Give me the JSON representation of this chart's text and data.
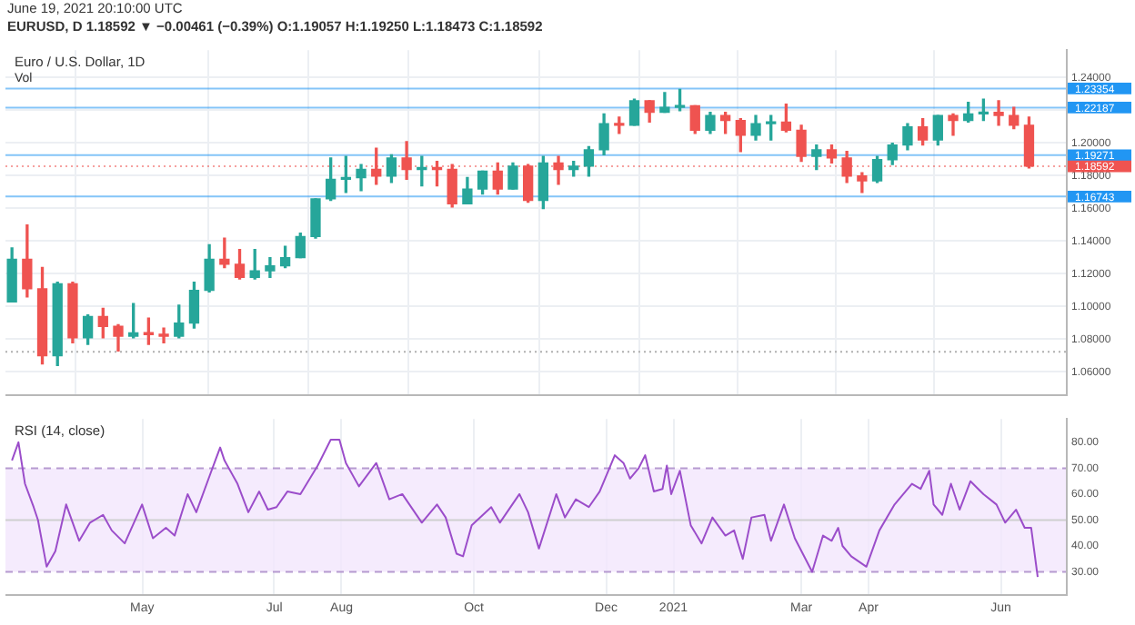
{
  "chart_data": [
    {
      "type": "candlestick",
      "title": "Euro / U.S. Dollar, 1D",
      "subtitle": "Vol",
      "annotations": [
        "June 19, 2021 20:10:00 UTC",
        "EURUSD, D 1.18592 ▼ −0.00461 (−0.39%) O:1.19057 H:1.19250 L:1.18473 C:1.18592"
      ],
      "x": [
        "2020-03-02",
        "2020-03-09",
        "2020-03-16",
        "2020-03-23",
        "2020-03-30",
        "2020-04-06",
        "2020-04-13",
        "2020-04-20",
        "2020-04-27",
        "2020-05-04",
        "2020-05-11",
        "2020-05-18",
        "2020-05-25",
        "2020-06-01",
        "2020-06-08",
        "2020-06-15",
        "2020-06-22",
        "2020-06-29",
        "2020-07-06",
        "2020-07-13",
        "2020-07-20",
        "2020-07-27",
        "2020-08-03",
        "2020-08-10",
        "2020-08-17",
        "2020-08-24",
        "2020-08-31",
        "2020-09-07",
        "2020-09-14",
        "2020-09-21",
        "2020-09-28",
        "2020-10-05",
        "2020-10-12",
        "2020-10-19",
        "2020-10-26",
        "2020-11-02",
        "2020-11-09",
        "2020-11-16",
        "2020-11-23",
        "2020-11-30",
        "2020-12-07",
        "2020-12-14",
        "2020-12-21",
        "2020-12-28",
        "2021-01-04",
        "2021-01-11",
        "2021-01-18",
        "2021-01-25",
        "2021-02-01",
        "2021-02-08",
        "2021-02-15",
        "2021-02-22",
        "2021-03-01",
        "2021-03-08",
        "2021-03-15",
        "2021-03-22",
        "2021-03-29",
        "2021-04-05",
        "2021-04-12",
        "2021-04-19",
        "2021-04-26",
        "2021-05-03",
        "2021-05-10",
        "2021-05-17",
        "2021-05-24",
        "2021-05-31",
        "2021-06-07",
        "2021-06-14"
      ],
      "ohlc": [
        [
          1.103,
          1.136,
          1.103,
          1.129
        ],
        [
          1.129,
          1.15,
          1.106,
          1.111
        ],
        [
          1.111,
          1.124,
          1.065,
          1.07
        ],
        [
          1.07,
          1.115,
          1.064,
          1.114
        ],
        [
          1.114,
          1.115,
          1.078,
          1.081
        ],
        [
          1.081,
          1.095,
          1.077,
          1.094
        ],
        [
          1.094,
          1.099,
          1.081,
          1.088
        ],
        [
          1.088,
          1.089,
          1.073,
          1.082
        ],
        [
          1.082,
          1.102,
          1.081,
          1.084
        ],
        [
          1.084,
          1.093,
          1.077,
          1.083
        ],
        [
          1.083,
          1.087,
          1.078,
          1.082
        ],
        [
          1.082,
          1.101,
          1.081,
          1.09
        ],
        [
          1.09,
          1.115,
          1.087,
          1.11
        ],
        [
          1.11,
          1.138,
          1.109,
          1.129
        ],
        [
          1.129,
          1.142,
          1.124,
          1.126
        ],
        [
          1.126,
          1.135,
          1.117,
          1.118
        ],
        [
          1.118,
          1.135,
          1.117,
          1.122
        ],
        [
          1.122,
          1.13,
          1.118,
          1.125
        ],
        [
          1.125,
          1.137,
          1.124,
          1.13
        ],
        [
          1.13,
          1.145,
          1.13,
          1.143
        ],
        [
          1.143,
          1.166,
          1.142,
          1.166
        ],
        [
          1.166,
          1.191,
          1.165,
          1.178
        ],
        [
          1.178,
          1.192,
          1.17,
          1.179
        ],
        [
          1.179,
          1.187,
          1.171,
          1.184
        ],
        [
          1.184,
          1.197,
          1.175,
          1.18
        ],
        [
          1.18,
          1.193,
          1.176,
          1.191
        ],
        [
          1.191,
          1.201,
          1.178,
          1.184
        ],
        [
          1.184,
          1.192,
          1.174,
          1.185
        ],
        [
          1.185,
          1.189,
          1.174,
          1.184
        ],
        [
          1.184,
          1.187,
          1.161,
          1.163
        ],
        [
          1.163,
          1.179,
          1.163,
          1.172
        ],
        [
          1.172,
          1.183,
          1.169,
          1.183
        ],
        [
          1.183,
          1.188,
          1.169,
          1.172
        ],
        [
          1.172,
          1.188,
          1.172,
          1.186
        ],
        [
          1.186,
          1.187,
          1.164,
          1.165
        ],
        [
          1.165,
          1.192,
          1.16,
          1.188
        ],
        [
          1.188,
          1.192,
          1.175,
          1.184
        ],
        [
          1.184,
          1.189,
          1.18,
          1.186
        ],
        [
          1.186,
          1.198,
          1.18,
          1.196
        ],
        [
          1.196,
          1.218,
          1.193,
          1.212
        ],
        [
          1.212,
          1.216,
          1.206,
          1.211
        ],
        [
          1.211,
          1.227,
          1.211,
          1.226
        ],
        [
          1.226,
          1.226,
          1.213,
          1.219
        ],
        [
          1.219,
          1.231,
          1.219,
          1.222
        ],
        [
          1.222,
          1.233,
          1.22,
          1.223
        ],
        [
          1.223,
          1.223,
          1.206,
          1.208
        ],
        [
          1.208,
          1.219,
          1.206,
          1.217
        ],
        [
          1.217,
          1.219,
          1.206,
          1.214
        ],
        [
          1.214,
          1.215,
          1.195,
          1.205
        ],
        [
          1.205,
          1.217,
          1.202,
          1.212
        ],
        [
          1.212,
          1.217,
          1.202,
          1.213
        ],
        [
          1.213,
          1.224,
          1.207,
          1.208
        ],
        [
          1.208,
          1.211,
          1.189,
          1.192
        ],
        [
          1.192,
          1.199,
          1.184,
          1.196
        ],
        [
          1.196,
          1.199,
          1.188,
          1.191
        ],
        [
          1.191,
          1.195,
          1.176,
          1.18
        ],
        [
          1.18,
          1.182,
          1.17,
          1.177
        ],
        [
          1.177,
          1.192,
          1.176,
          1.19
        ],
        [
          1.19,
          1.2,
          1.187,
          1.199
        ],
        [
          1.199,
          1.212,
          1.196,
          1.21
        ],
        [
          1.21,
          1.215,
          1.199,
          1.202
        ],
        [
          1.202,
          1.217,
          1.199,
          1.217
        ],
        [
          1.217,
          1.218,
          1.205,
          1.214
        ],
        [
          1.214,
          1.225,
          1.213,
          1.218
        ],
        [
          1.218,
          1.227,
          1.214,
          1.219
        ],
        [
          1.219,
          1.226,
          1.211,
          1.217
        ],
        [
          1.217,
          1.222,
          1.209,
          1.211
        ],
        [
          1.211,
          1.216,
          1.185,
          1.186
        ]
      ],
      "colors": [
        "#26a69a",
        "#ef5350",
        "#ef5350",
        "#26a69a",
        "#ef5350",
        "#26a69a",
        "#ef5350",
        "#ef5350",
        "#26a69a",
        "#ef5350",
        "#ef5350",
        "#26a69a",
        "#26a69a",
        "#26a69a",
        "#ef5350",
        "#ef5350",
        "#26a69a",
        "#26a69a",
        "#26a69a",
        "#26a69a",
        "#26a69a",
        "#26a69a",
        "#26a69a",
        "#26a69a",
        "#ef5350",
        "#26a69a",
        "#ef5350",
        "#26a69a",
        "#ef5350",
        "#ef5350",
        "#26a69a",
        "#26a69a",
        "#ef5350",
        "#26a69a",
        "#ef5350",
        "#26a69a",
        "#ef5350",
        "#26a69a",
        "#26a69a",
        "#26a69a",
        "#ef5350",
        "#26a69a",
        "#ef5350",
        "#26a69a",
        "#26a69a",
        "#ef5350",
        "#26a69a",
        "#ef5350",
        "#ef5350",
        "#26a69a",
        "#26a69a",
        "#ef5350",
        "#ef5350",
        "#26a69a",
        "#ef5350",
        "#ef5350",
        "#ef5350",
        "#26a69a",
        "#26a69a",
        "#26a69a",
        "#ef5350",
        "#26a69a",
        "#ef5350",
        "#26a69a",
        "#26a69a",
        "#ef5350",
        "#ef5350",
        "#ef5350"
      ],
      "xlim": [
        "2020-02-28",
        "2021-07-01"
      ],
      "xticks": [
        "2020-05-01",
        "2020-07-01",
        "2020-08-01",
        "2020-10-01",
        "2020-12-01",
        "2021-01-01",
        "2021-03-01",
        "2021-04-01",
        "2021-06-01"
      ],
      "ylim": [
        1.046,
        1.257
      ],
      "yticks": [
        {
          "value": 1.06,
          "label": "1.06000"
        },
        {
          "value": 1.08,
          "label": "1.08000"
        },
        {
          "value": 1.1,
          "label": "1.10000"
        },
        {
          "value": 1.12,
          "label": "1.12000"
        },
        {
          "value": 1.14,
          "label": "1.14000"
        },
        {
          "value": 1.16,
          "label": "1.16000"
        },
        {
          "value": 1.18,
          "label": "1.18000"
        },
        {
          "value": 1.2,
          "label": "1.20000"
        },
        {
          "value": 1.22,
          "label": null
        },
        {
          "value": 1.24,
          "label": "1.24000"
        }
      ],
      "tick_labels": "y",
      "grid": true,
      "ref_lines": [
        {
          "axis": "y",
          "value": 1.23354,
          "label": "1.23354",
          "color": "#2196f3",
          "line_style": "solid"
        },
        {
          "axis": "y",
          "value": 1.22187,
          "label": "1.22187",
          "color": "#2196f3",
          "line_style": "solid"
        },
        {
          "axis": "y",
          "value": 1.19271,
          "label": "1.19271",
          "color": "#2196f3",
          "line_style": "solid"
        },
        {
          "axis": "y",
          "value": 1.18592,
          "label": "1.18592",
          "color": "#ef5350",
          "line_style": "dotted"
        },
        {
          "axis": "y",
          "value": 1.16743,
          "label": "1.16743",
          "color": "#2196f3",
          "line_style": "solid"
        },
        {
          "axis": "y",
          "value": 1.0725,
          "color": "#b0b0b0",
          "line_style": "dotted"
        }
      ]
    },
    {
      "type": "line",
      "title": "RSI (14, close)",
      "color": "#9b4dca",
      "marker": "none",
      "line_style": "solid",
      "x": [
        "2020-03-02",
        "2020-03-05",
        "2020-03-08",
        "2020-03-12",
        "2020-03-14",
        "2020-03-18",
        "2020-03-22",
        "2020-03-27",
        "2020-04-02",
        "2020-04-07",
        "2020-04-13",
        "2020-04-17",
        "2020-04-23",
        "2020-05-01",
        "2020-05-06",
        "2020-05-12",
        "2020-05-16",
        "2020-05-22",
        "2020-05-26",
        "2020-06-02",
        "2020-06-06",
        "2020-06-08",
        "2020-06-14",
        "2020-06-19",
        "2020-06-24",
        "2020-06-28",
        "2020-07-02",
        "2020-07-07",
        "2020-07-13",
        "2020-07-21",
        "2020-07-27",
        "2020-07-31",
        "2020-08-03",
        "2020-08-09",
        "2020-08-17",
        "2020-08-23",
        "2020-08-29",
        "2020-09-07",
        "2020-09-14",
        "2020-09-18",
        "2020-09-23",
        "2020-09-26",
        "2020-09-30",
        "2020-10-09",
        "2020-10-13",
        "2020-10-22",
        "2020-10-26",
        "2020-10-31",
        "2020-11-08",
        "2020-11-12",
        "2020-11-17",
        "2020-11-23",
        "2020-11-28",
        "2020-12-05",
        "2020-12-09",
        "2020-12-12",
        "2020-12-16",
        "2020-12-19",
        "2020-12-23",
        "2020-12-27",
        "2020-12-29",
        "2020-12-31",
        "2021-01-04",
        "2021-01-09",
        "2021-01-14",
        "2021-01-19",
        "2021-01-25",
        "2021-01-29",
        "2021-02-02",
        "2021-02-06",
        "2021-02-12",
        "2021-02-15",
        "2021-02-21",
        "2021-02-26",
        "2021-03-06",
        "2021-03-11",
        "2021-03-15",
        "2021-03-18",
        "2021-03-20",
        "2021-03-24",
        "2021-03-31",
        "2021-04-06",
        "2021-04-13",
        "2021-04-21",
        "2021-04-25",
        "2021-04-29",
        "2021-05-01",
        "2021-05-05",
        "2021-05-09",
        "2021-05-13",
        "2021-05-18",
        "2021-05-24",
        "2021-05-30",
        "2021-06-03",
        "2021-06-08",
        "2021-06-12",
        "2021-06-15",
        "2021-06-18"
      ],
      "values": [
        73,
        80,
        64,
        55,
        50,
        32,
        38,
        56,
        42,
        49,
        52,
        46,
        41,
        56,
        43,
        47,
        44,
        60,
        53,
        69,
        78,
        73,
        64,
        53,
        61,
        54,
        55,
        61,
        60,
        71,
        81,
        81,
        72,
        63,
        72,
        58,
        60,
        49,
        56,
        51,
        37,
        36,
        48,
        55,
        49,
        60,
        53,
        39,
        60,
        51,
        58,
        55,
        61,
        75,
        72,
        66,
        70,
        75,
        61,
        62,
        71,
        60,
        69,
        48,
        41,
        51,
        44,
        46,
        35,
        51,
        52,
        42,
        56,
        43,
        30,
        44,
        42,
        47,
        40,
        36,
        32,
        46,
        56,
        64,
        62,
        69,
        56,
        52,
        64,
        54,
        65,
        60,
        56,
        49,
        54,
        47,
        47,
        28
      ],
      "xlim": [
        "2020-02-28",
        "2021-07-01"
      ],
      "xticks": [
        {
          "value": "2020-05-01",
          "label": "May"
        },
        {
          "value": "2020-07-01",
          "label": "Jul"
        },
        {
          "value": "2020-08-01",
          "label": "Aug"
        },
        {
          "value": "2020-10-01",
          "label": "Oct"
        },
        {
          "value": "2020-12-01",
          "label": "Dec"
        },
        {
          "value": "2021-01-01",
          "label": "2021"
        },
        {
          "value": "2021-03-01",
          "label": "Mar"
        },
        {
          "value": "2021-04-01",
          "label": "Apr"
        },
        {
          "value": "2021-06-01",
          "label": "Jun"
        }
      ],
      "ylim": [
        21,
        89
      ],
      "yticks": [
        {
          "value": 30,
          "label": "30.00"
        },
        {
          "value": 40,
          "label": "40.00"
        },
        {
          "value": 50,
          "label": "50.00"
        },
        {
          "value": 60,
          "label": "60.00"
        },
        {
          "value": 70,
          "label": "70.00"
        },
        {
          "value": 80,
          "label": "80.00"
        }
      ],
      "grid": "x",
      "bands": [
        {
          "axis": "y",
          "from": 30,
          "to": 70,
          "color": "#f3e6fc"
        }
      ],
      "ref_lines": [
        {
          "axis": "y",
          "value": 70,
          "color": "#b59ad0",
          "line_style": "dashed"
        },
        {
          "axis": "y",
          "value": 50,
          "color": "#cfcfcf",
          "line_style": "solid"
        },
        {
          "axis": "y",
          "value": 30,
          "color": "#b59ad0",
          "line_style": "dashed"
        }
      ]
    }
  ]
}
